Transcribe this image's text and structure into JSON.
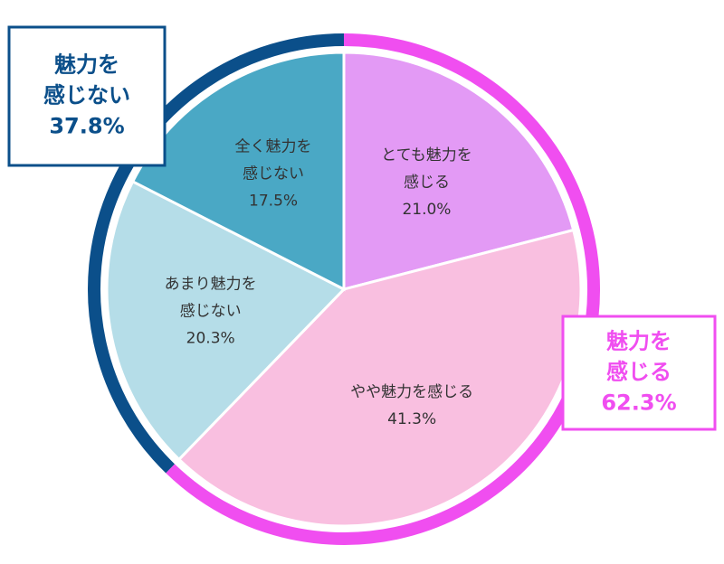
{
  "chart_data": {
    "type": "pie",
    "categories": [
      [
        "とても魅力を",
        "感じる"
      ],
      [
        "やや魅力を感じる"
      ],
      [
        "あまり魅力を",
        "感じない"
      ],
      [
        "全く魅力を",
        "感じない"
      ]
    ],
    "values": [
      21.0,
      41.3,
      20.3,
      17.5
    ],
    "value_labels": [
      "21.0%",
      "41.3%",
      "20.3%",
      "17.5%"
    ],
    "colors": [
      "#e39af5",
      "#f9bfe0",
      "#b5dde8",
      "#4aa8c5"
    ],
    "groups": [
      {
        "name": [
          "魅力を",
          "感じる"
        ],
        "value": 62.3,
        "value_label": "62.3%",
        "color": "#f04ef0"
      },
      {
        "name": [
          "魅力を",
          "感じない"
        ],
        "value": 37.8,
        "value_label": "37.8%",
        "color": "#0b4f8a"
      }
    ]
  }
}
